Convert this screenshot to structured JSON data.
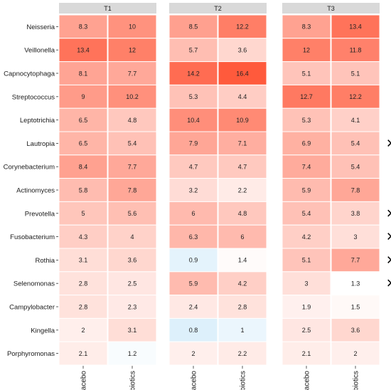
{
  "chart_data": {
    "type": "heatmap",
    "panels": [
      "T1",
      "T2",
      "T3"
    ],
    "columns": [
      "placebo",
      "probiotics"
    ],
    "rows": [
      "Neisseria",
      "Veillonella",
      "Capnocytophaga",
      "Streptococcus",
      "Leptotrichia",
      "Lautropia",
      "Corynebacterium",
      "Actinomyces",
      "Prevotella",
      "Fusobacterium",
      "Rothia",
      "Selenomonas",
      "Campylobacter",
      "Kingella",
      "Porphyromonas"
    ],
    "values": {
      "T1": [
        [
          8.3,
          10
        ],
        [
          13.4,
          12
        ],
        [
          8.1,
          7.7
        ],
        [
          9,
          10.2
        ],
        [
          6.5,
          4.8
        ],
        [
          6.5,
          5.4
        ],
        [
          8.4,
          7.7
        ],
        [
          5.8,
          7.8
        ],
        [
          5,
          5.6
        ],
        [
          4.3,
          4
        ],
        [
          3.1,
          3.6
        ],
        [
          2.8,
          2.5
        ],
        [
          2.8,
          2.3
        ],
        [
          2,
          3.1
        ],
        [
          2.1,
          1.2
        ]
      ],
      "T2": [
        [
          8.5,
          12.2
        ],
        [
          5.7,
          3.6
        ],
        [
          14.2,
          16.4
        ],
        [
          5.3,
          4.4
        ],
        [
          10.4,
          10.9
        ],
        [
          7.9,
          7.1
        ],
        [
          4.7,
          4.7
        ],
        [
          3.2,
          2.2
        ],
        [
          6,
          4.8
        ],
        [
          6.3,
          6
        ],
        [
          0.9,
          1.4
        ],
        [
          5.9,
          4.2
        ],
        [
          2.4,
          2.8
        ],
        [
          0.8,
          1
        ],
        [
          2,
          2.2
        ]
      ],
      "T3": [
        [
          8.3,
          13.4
        ],
        [
          12,
          11.8
        ],
        [
          5.1,
          5.1
        ],
        [
          12.7,
          12.2
        ],
        [
          5.3,
          4.1
        ],
        [
          6.9,
          5.4
        ],
        [
          7.4,
          5.4
        ],
        [
          5.9,
          7.8
        ],
        [
          5.4,
          3.8
        ],
        [
          4.2,
          3
        ],
        [
          5.1,
          7.7
        ],
        [
          3,
          1.3
        ],
        [
          1.9,
          1.5
        ],
        [
          2.5,
          3.6
        ],
        [
          2.1,
          2
        ]
      ]
    },
    "markers": {
      "rows": [
        "Lautropia",
        "Prevotella",
        "Fusobacterium",
        "Rothia",
        "Selenomonas"
      ],
      "symbol": "×"
    },
    "color_scale": {
      "low": "#ddf0fb",
      "mid": "#ffffff",
      "high": "#ff5a3c",
      "midpoint": 1.3
    },
    "panel_header_color": "#d9d9d9",
    "grid": false,
    "legend": "none"
  }
}
